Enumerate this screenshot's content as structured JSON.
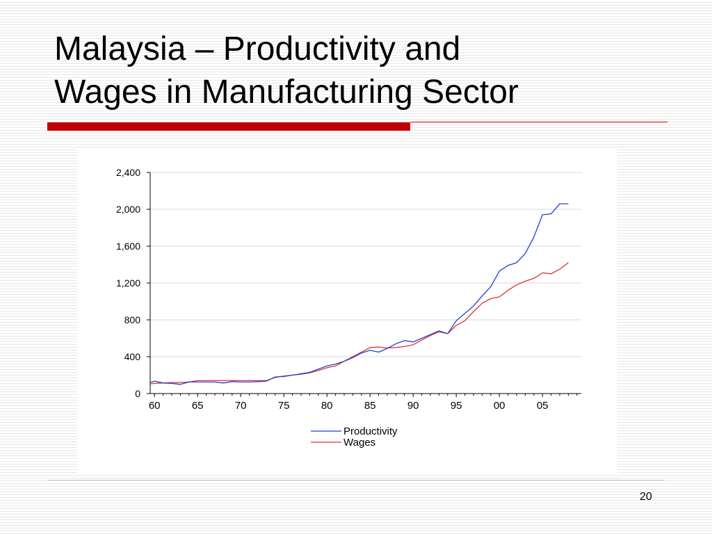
{
  "slide": {
    "title_line1": "Malaysia – Productivity and",
    "title_line2": "Wages in Manufacturing Sector",
    "page_number": "20",
    "accent_color": "#c00000"
  },
  "chart_data": {
    "type": "line",
    "title": "",
    "xlabel": "",
    "ylabel": "",
    "xlim": [
      1959.5,
      2009.5
    ],
    "ylim": [
      0,
      2400
    ],
    "y_ticks": [
      "0",
      "400",
      "800",
      "1,200",
      "1,600",
      "2,000",
      "2,400"
    ],
    "y_tick_values": [
      0,
      400,
      800,
      1200,
      1600,
      2000,
      2400
    ],
    "x_ticks": [
      "60",
      "65",
      "70",
      "75",
      "80",
      "85",
      "90",
      "95",
      "00",
      "05"
    ],
    "x_tick_values": [
      1960,
      1965,
      1970,
      1975,
      1980,
      1985,
      1990,
      1995,
      2000,
      2005
    ],
    "grid": true,
    "legend_position": "bottom-center",
    "x": [
      1959,
      1960,
      1961,
      1962,
      1963,
      1964,
      1965,
      1966,
      1967,
      1968,
      1969,
      1970,
      1971,
      1972,
      1973,
      1974,
      1975,
      1976,
      1977,
      1978,
      1979,
      1980,
      1981,
      1982,
      1983,
      1984,
      1985,
      1986,
      1987,
      1988,
      1989,
      1990,
      1991,
      1992,
      1993,
      1994,
      1995,
      1996,
      1997,
      1998,
      1999,
      2000,
      2001,
      2002,
      2003,
      2004,
      2005,
      2006,
      2007,
      2008
    ],
    "series": [
      {
        "name": "Productivity",
        "color": "#1f3fcf",
        "values": [
          100,
          135,
          115,
          110,
          100,
          125,
          125,
          125,
          125,
          115,
          130,
          125,
          125,
          130,
          135,
          180,
          185,
          200,
          215,
          230,
          265,
          300,
          320,
          350,
          390,
          440,
          470,
          450,
          490,
          540,
          575,
          560,
          600,
          640,
          680,
          650,
          790,
          870,
          950,
          1060,
          1160,
          1330,
          1390,
          1420,
          1520,
          1700,
          1940,
          1950,
          2060,
          2060
        ]
      },
      {
        "name": "Wages",
        "color": "#e03030",
        "values": [
          100,
          110,
          115,
          120,
          120,
          125,
          140,
          140,
          140,
          140,
          140,
          140,
          140,
          140,
          140,
          175,
          190,
          200,
          210,
          225,
          250,
          280,
          300,
          350,
          400,
          450,
          500,
          505,
          495,
          500,
          510,
          530,
          580,
          630,
          670,
          650,
          740,
          790,
          890,
          980,
          1030,
          1050,
          1120,
          1180,
          1220,
          1250,
          1310,
          1300,
          1350,
          1420
        ]
      }
    ]
  }
}
